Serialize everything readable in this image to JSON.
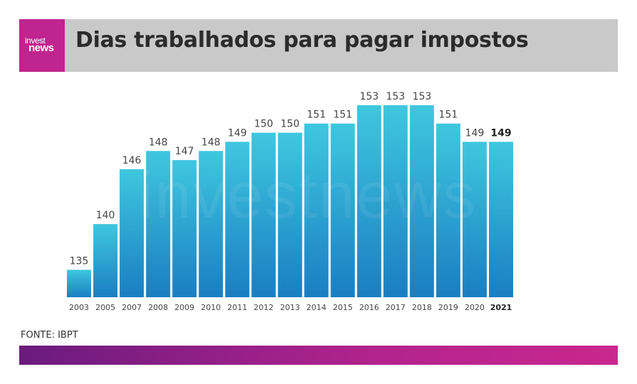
{
  "header": {
    "logo_top": "invest",
    "logo_bottom": "news",
    "title": "Dias trabalhados para pagar impostos"
  },
  "watermark": "investnews",
  "source": "FONTE: IBPT",
  "colors": {
    "bar_top": "#3fc7df",
    "bar_bottom": "#1a7ec2",
    "header_bg": "#c9c9c9",
    "brand": "#c0248f"
  },
  "chart_data": {
    "type": "bar",
    "title": "Dias trabalhados para pagar impostos",
    "xlabel": "",
    "ylabel": "",
    "categories": [
      "2003",
      "2005",
      "2007",
      "2008",
      "2009",
      "2010",
      "2011",
      "2012",
      "2013",
      "2014",
      "2015",
      "2016",
      "2017",
      "2018",
      "2019",
      "2020",
      "2021"
    ],
    "values": [
      135,
      140,
      146,
      148,
      147,
      148,
      149,
      150,
      150,
      151,
      151,
      153,
      153,
      153,
      151,
      149,
      149
    ],
    "highlight": "2021",
    "grid": false,
    "ylim": [
      132,
      153
    ]
  }
}
